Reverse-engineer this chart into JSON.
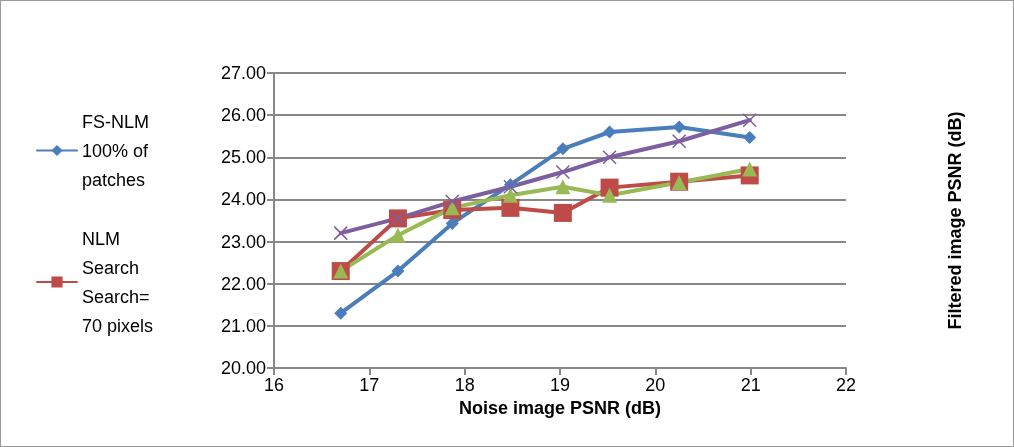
{
  "chart_data": {
    "type": "line",
    "xlabel": "Noise image PSNR (dB)",
    "ylabel": "Filtered image PSNR (dB)",
    "x": [
      16.7,
      17.3,
      17.87,
      18.48,
      19.03,
      19.52,
      20.25,
      20.99
    ],
    "series": [
      {
        "name": "FS-NLM 100% of patches",
        "color": "#4a7ebb",
        "marker": "diamond",
        "values": [
          21.3,
          22.3,
          23.43,
          24.35,
          25.2,
          25.6,
          25.72,
          25.47
        ]
      },
      {
        "name": "NLM Search Search= 70 pixels",
        "color": "#be4b48",
        "marker": "square",
        "values": [
          22.3,
          23.55,
          23.75,
          23.8,
          23.68,
          24.28,
          24.42,
          24.57
        ]
      },
      {
        "color": "#98b954",
        "marker": "triangle",
        "values": [
          22.3,
          23.15,
          23.8,
          24.1,
          24.3,
          24.1,
          24.4,
          24.72
        ]
      },
      {
        "color": "#7d5fa0",
        "marker": "cross",
        "values": [
          23.2,
          23.55,
          23.95,
          24.3,
          24.65,
          25.0,
          25.38,
          25.88
        ]
      }
    ],
    "xlim": [
      16,
      22
    ],
    "xticks": [
      16,
      17,
      18,
      19,
      20,
      21,
      22
    ],
    "ylim": [
      20,
      27
    ],
    "yticks": [
      {
        "value": 20,
        "label": "20.00"
      },
      {
        "value": 21,
        "label": "21.00"
      },
      {
        "value": 22,
        "label": "22.00"
      },
      {
        "value": 23,
        "label": "23.00"
      },
      {
        "value": 24,
        "label": "24.00"
      },
      {
        "value": 25,
        "label": "25.00"
      },
      {
        "value": 26,
        "label": "26.00"
      },
      {
        "value": 27,
        "label": "27.00"
      }
    ],
    "grid": "y",
    "legend": "left",
    "line_style": "solid"
  }
}
